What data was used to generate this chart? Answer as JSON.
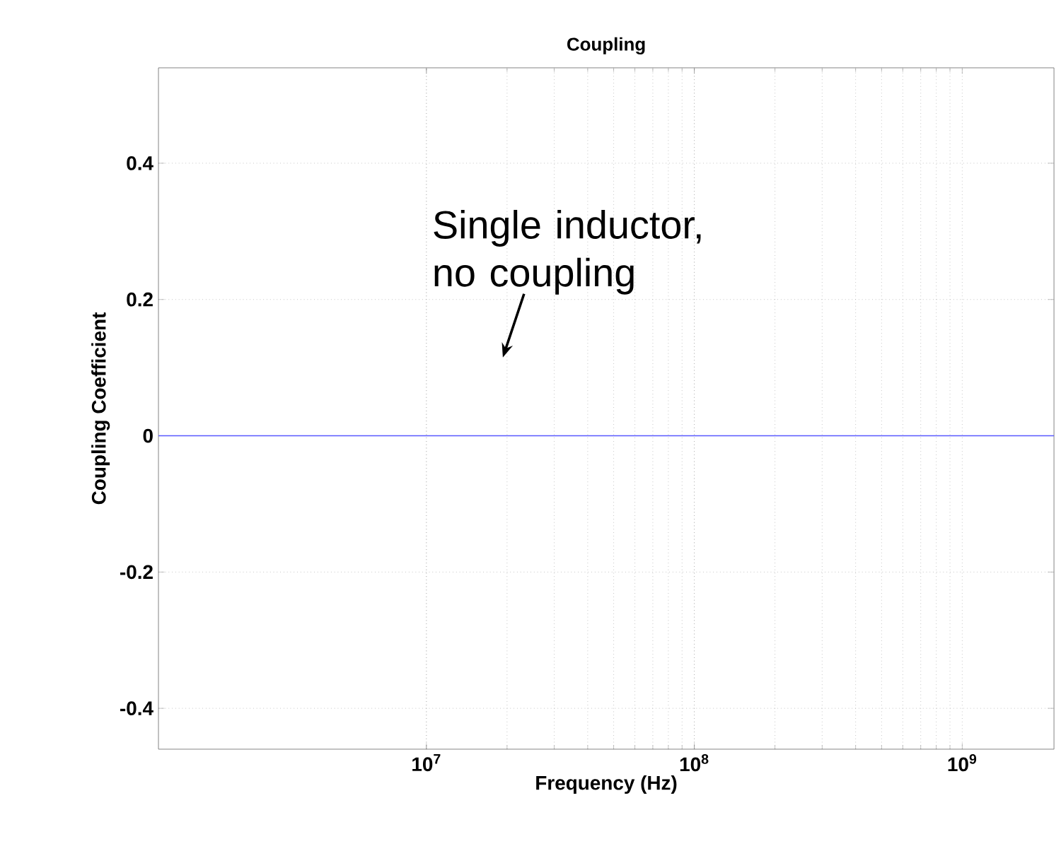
{
  "chart_data": {
    "type": "line",
    "title": "Coupling",
    "xlabel": "Frequency (Hz)",
    "ylabel": "Coupling Coefficient",
    "x": [
      1000000,
      2200000000
    ],
    "series": [
      {
        "color": "#5a5aff",
        "values": [
          0,
          0
        ]
      }
    ],
    "log": "x",
    "xlim": [
      1000000,
      2200000000
    ],
    "ylim": [
      -0.46,
      0.54
    ],
    "xticks": [
      {
        "value": 10000000,
        "label": "10$^{7}$"
      },
      {
        "value": 100000000,
        "label": "10$^{8}$"
      },
      {
        "value": 1000000000,
        "label": "10$^{9}$"
      }
    ],
    "yticks": [
      -0.4,
      -0.2,
      0,
      0.2,
      0.4
    ],
    "grid": true,
    "annotations": [
      "Single inductor, no coupling"
    ]
  }
}
